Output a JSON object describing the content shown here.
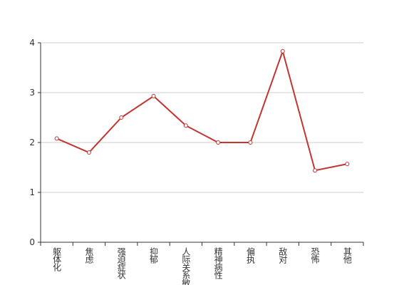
{
  "chart_data": {
    "type": "line",
    "categories": [
      "躯体化",
      "焦虑",
      "强迫症状",
      "抑郁",
      "人际关系敏感",
      "精神病性",
      "偏执",
      "敌对",
      "恐怖",
      "其他"
    ],
    "series": [
      {
        "color": "#c23531",
        "values": [
          2.08,
          1.8,
          2.5,
          2.93,
          2.34,
          2.0,
          2.0,
          3.83,
          1.44,
          1.57
        ]
      }
    ],
    "ylim": [
      0,
      4
    ],
    "yticks": [
      0,
      1,
      2,
      3,
      4
    ],
    "grid": true
  }
}
